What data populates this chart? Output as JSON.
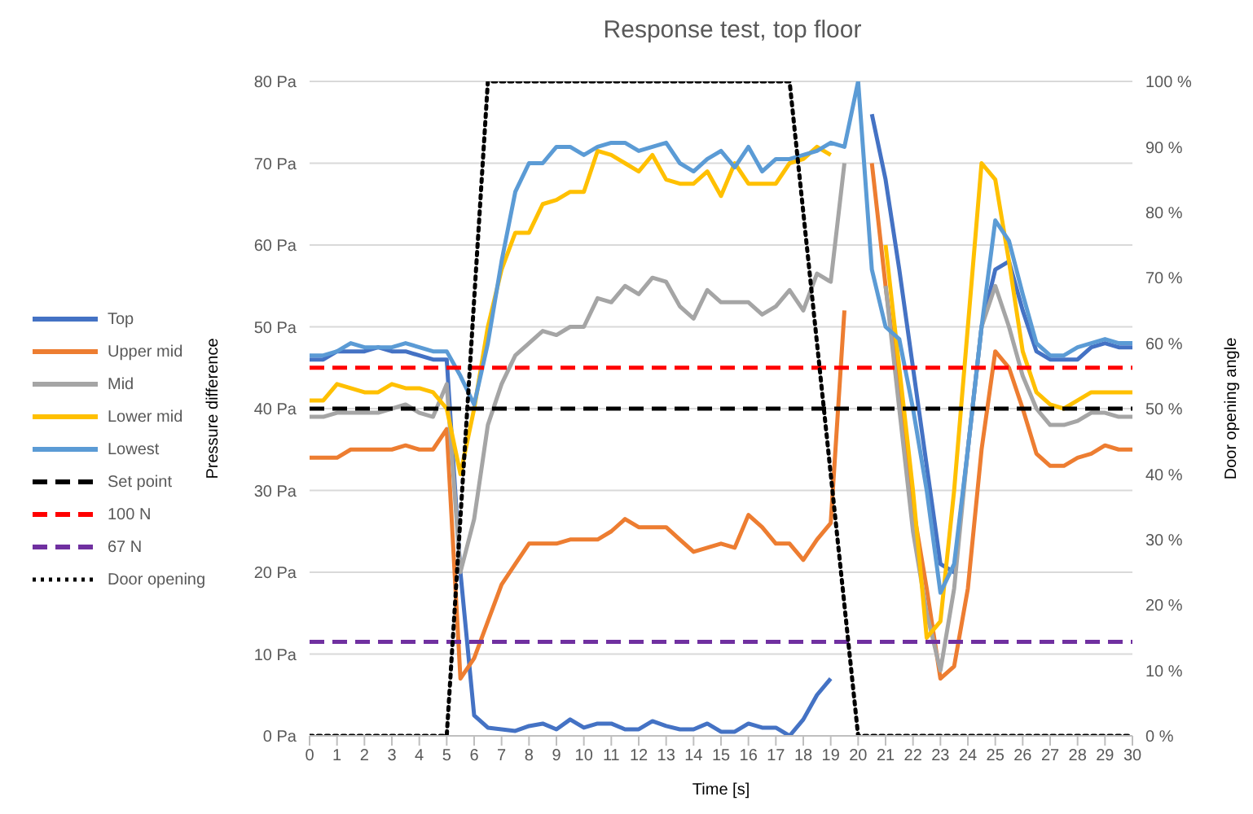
{
  "chart_data": {
    "type": "line",
    "title": "Response test, top floor",
    "xlabel": "Time [s]",
    "ylabel": "Pressure difference",
    "y2label": "Door opening angle",
    "x": [
      0,
      0.5,
      1,
      1.5,
      2,
      2.5,
      3,
      3.5,
      4,
      4.5,
      5,
      5.5,
      6,
      6.5,
      7,
      7.5,
      8,
      8.5,
      9,
      9.5,
      10,
      10.5,
      11,
      11.5,
      12,
      12.5,
      13,
      13.5,
      14,
      14.5,
      15,
      15.5,
      16,
      16.5,
      17,
      17.5,
      18,
      18.5,
      19,
      19.5,
      20,
      20.5,
      21,
      21.5,
      22,
      22.5,
      23,
      23.5,
      24,
      24.5,
      25,
      25.5,
      26,
      26.5,
      27,
      27.5,
      28,
      28.5,
      29,
      29.5,
      30
    ],
    "xlim": [
      0,
      30
    ],
    "xticks": [
      0,
      1,
      2,
      3,
      4,
      5,
      6,
      7,
      8,
      9,
      10,
      11,
      12,
      13,
      14,
      15,
      16,
      17,
      18,
      19,
      20,
      21,
      22,
      23,
      24,
      25,
      26,
      27,
      28,
      29,
      30
    ],
    "ylim": [
      0,
      80
    ],
    "yticks": [
      {
        "value": 0,
        "label": "0 Pa"
      },
      {
        "value": 10,
        "label": "10 Pa"
      },
      {
        "value": 20,
        "label": "20 Pa"
      },
      {
        "value": 30,
        "label": "30 Pa"
      },
      {
        "value": 40,
        "label": "40 Pa"
      },
      {
        "value": 50,
        "label": "50 Pa"
      },
      {
        "value": 60,
        "label": "60 Pa"
      },
      {
        "value": 70,
        "label": "70 Pa"
      },
      {
        "value": 80,
        "label": "80 Pa"
      }
    ],
    "y2lim": [
      0,
      100
    ],
    "y2ticks": [
      {
        "value": 0,
        "label": "0 %"
      },
      {
        "value": 10,
        "label": "10 %"
      },
      {
        "value": 20,
        "label": "20 %"
      },
      {
        "value": 30,
        "label": "30 %"
      },
      {
        "value": 40,
        "label": "40 %"
      },
      {
        "value": 50,
        "label": "50 %"
      },
      {
        "value": 60,
        "label": "60 %"
      },
      {
        "value": 70,
        "label": "70 %"
      },
      {
        "value": 80,
        "label": "80 %"
      },
      {
        "value": 90,
        "label": "90 %"
      },
      {
        "value": 100,
        "label": "100 %"
      }
    ],
    "grid": "y",
    "legend": "left",
    "marker": "none",
    "series": [
      {
        "name": "Top",
        "color": "#4472c4",
        "line_style": "solid",
        "values": [
          46,
          46,
          47,
          47,
          47,
          47.5,
          47,
          47,
          46.5,
          46,
          46,
          20,
          2.5,
          1,
          0.8,
          0.6,
          1.2,
          1.5,
          0.8,
          2,
          1,
          1.5,
          1.5,
          0.8,
          0.8,
          1.8,
          1.2,
          0.8,
          0.8,
          1.5,
          0.5,
          0.5,
          1.5,
          1,
          1,
          0,
          2,
          5,
          7,
          null,
          null,
          76,
          68,
          57,
          45,
          33,
          21,
          20,
          35,
          50,
          57,
          58,
          52,
          47,
          46,
          46,
          46,
          47.5,
          48,
          47.5,
          47.5
        ]
      },
      {
        "name": "Upper mid",
        "color": "#ed7d31",
        "line_style": "solid",
        "values": [
          34,
          34,
          34,
          35,
          35,
          35,
          35,
          35.5,
          35,
          35,
          37.5,
          7,
          9.5,
          14,
          18.5,
          21,
          23.5,
          23.5,
          23.5,
          24,
          24,
          24,
          25,
          26.5,
          25.5,
          25.5,
          25.5,
          24,
          22.5,
          23,
          23.5,
          23,
          27,
          25.5,
          23.5,
          23.5,
          21.5,
          24,
          26,
          52,
          null,
          70,
          55,
          42,
          28,
          18,
          7,
          8.5,
          18,
          35,
          47,
          45,
          40,
          34.5,
          33,
          33,
          34,
          34.5,
          35.5,
          35,
          35
        ]
      },
      {
        "name": "Mid",
        "color": "#a5a5a5",
        "line_style": "solid",
        "values": [
          39,
          39,
          39.5,
          39.5,
          39.5,
          39.5,
          40,
          40.5,
          39.5,
          39,
          43,
          20,
          26.5,
          38,
          43,
          46.5,
          48,
          49.5,
          49,
          50,
          50,
          53.5,
          53,
          55,
          54,
          56,
          55.5,
          52.5,
          51,
          54.5,
          53,
          53,
          53,
          51.5,
          52.5,
          54.5,
          52,
          56.5,
          55.5,
          70,
          null,
          null,
          55,
          40,
          25,
          15,
          8,
          18,
          35,
          50,
          55,
          50,
          44,
          40,
          38,
          38,
          38.5,
          39.5,
          39.5,
          39,
          39
        ]
      },
      {
        "name": "Lower mid",
        "color": "#ffc000",
        "line_style": "solid",
        "values": [
          41,
          41,
          43,
          42.5,
          42,
          42,
          43,
          42.5,
          42.5,
          42,
          40,
          32,
          40,
          50,
          57,
          61.5,
          61.5,
          65,
          65.5,
          66.5,
          66.5,
          71.5,
          71,
          70,
          69,
          71,
          68,
          67.5,
          67.5,
          69,
          66,
          70,
          67.5,
          67.5,
          67.5,
          70,
          70.5,
          72,
          71,
          null,
          null,
          null,
          60,
          45,
          30,
          12,
          14,
          30,
          50,
          70,
          68,
          58,
          47,
          42,
          40.5,
          40,
          41,
          42,
          42,
          42,
          42
        ]
      },
      {
        "name": "Lowest",
        "color": "#5b9bd5",
        "line_style": "solid",
        "values": [
          46.5,
          46.5,
          47,
          48,
          47.5,
          47.5,
          47.5,
          48,
          47.5,
          47,
          47,
          44,
          40.5,
          48,
          58,
          66.5,
          70,
          70,
          72,
          72,
          71,
          72,
          72.5,
          72.5,
          71.5,
          72,
          72.5,
          70,
          69,
          70.5,
          71.5,
          69.5,
          72,
          69,
          70.5,
          70.5,
          71,
          71.5,
          72.5,
          72,
          80,
          57,
          50,
          48.5,
          40,
          30,
          17.5,
          21,
          35,
          50,
          63,
          60.5,
          54,
          48,
          46.5,
          46.5,
          47.5,
          48,
          48.5,
          48,
          48
        ]
      },
      {
        "name": "Set point",
        "color": "#000000",
        "line_style": "dashed",
        "x": [
          0,
          30
        ],
        "values": [
          40,
          40
        ]
      },
      {
        "name": "100 N",
        "color": "#ff0000",
        "line_style": "dashed",
        "x": [
          0,
          30
        ],
        "values": [
          45,
          45
        ]
      },
      {
        "name": "67 N",
        "color": "#7030a0",
        "line_style": "dashed",
        "x": [
          0,
          30
        ],
        "values": [
          11.5,
          11.5
        ]
      },
      {
        "name": "Door opening",
        "color": "#000000",
        "line_style": "dotted",
        "axis": "y2",
        "x": [
          0,
          5,
          6.5,
          17.5,
          20,
          30
        ],
        "values": [
          0,
          0,
          100,
          100,
          0,
          0
        ]
      }
    ]
  }
}
